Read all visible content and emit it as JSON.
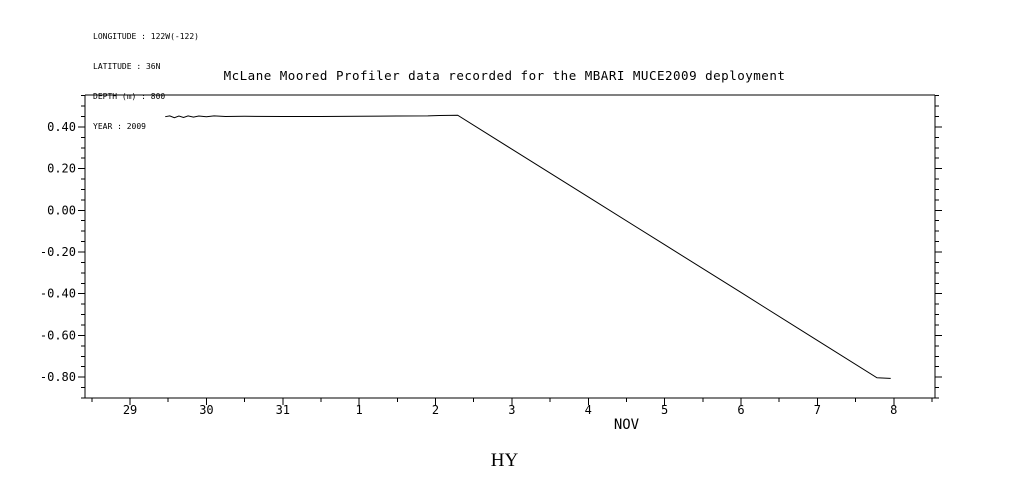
{
  "metadata": {
    "lines": [
      "LONGITUDE : 122W(-122)",
      "LATITUDE : 36N",
      "DEPTH (m) : 800",
      "YEAR : 2009"
    ]
  },
  "chart_data": {
    "type": "line",
    "title": "McLane Moored Profiler data recorded for the MBARI MUCE2009 deployment",
    "xlabel": "NOV",
    "ylabel": "",
    "grid": false,
    "legend": "none",
    "line_color": "#000000",
    "background": "#ffffff",
    "x_axis": {
      "xlim": [
        28.41,
        39.54
      ],
      "tick_days": [
        29,
        30,
        31,
        32,
        33,
        34,
        35,
        36,
        37,
        38,
        39
      ],
      "tick_labels": [
        "29",
        "30",
        "31",
        "1",
        "2",
        "3",
        "4",
        "5",
        "6",
        "7",
        "8"
      ],
      "minor_step": 0.5,
      "month_label": "NOV",
      "month_label_day": 35.5
    },
    "y_axis": {
      "ylim": [
        -0.9,
        0.553
      ],
      "tick_values": [
        0.4,
        0.2,
        0.0,
        -0.2,
        -0.4,
        -0.6,
        -0.8
      ],
      "tick_labels": [
        "0.40",
        "0.20",
        "0.00",
        "-0.20",
        "-0.40",
        "-0.60",
        "-0.80"
      ],
      "minor_step": 0.05
    },
    "series": [
      {
        "name": "HY",
        "points": [
          [
            29.46,
            0.449
          ],
          [
            29.52,
            0.453
          ],
          [
            29.58,
            0.444
          ],
          [
            29.64,
            0.452
          ],
          [
            29.7,
            0.445
          ],
          [
            29.76,
            0.453
          ],
          [
            29.83,
            0.447
          ],
          [
            29.9,
            0.452
          ],
          [
            30.0,
            0.449
          ],
          [
            30.1,
            0.453
          ],
          [
            30.25,
            0.45
          ],
          [
            30.5,
            0.451
          ],
          [
            31.0,
            0.45
          ],
          [
            31.5,
            0.45
          ],
          [
            32.0,
            0.451
          ],
          [
            32.5,
            0.452
          ],
          [
            32.9,
            0.453
          ],
          [
            33.05,
            0.455
          ],
          [
            33.29,
            0.456
          ],
          [
            34.0,
            0.293
          ],
          [
            35.0,
            0.064
          ],
          [
            36.0,
            -0.165
          ],
          [
            37.0,
            -0.394
          ],
          [
            38.0,
            -0.624
          ],
          [
            38.78,
            -0.803
          ],
          [
            38.96,
            -0.806
          ]
        ]
      }
    ]
  }
}
